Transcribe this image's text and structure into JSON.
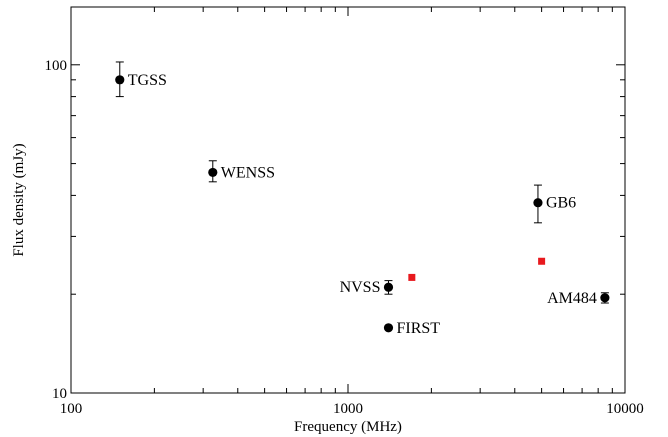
{
  "chart_data": {
    "type": "scatter",
    "title": "",
    "xlabel": "Frequency (MHz)",
    "ylabel": "Flux density (mJy)",
    "x_scale": "log",
    "y_scale": "log",
    "xlim": [
      100,
      10000
    ],
    "ylim": [
      10,
      150
    ],
    "grid": false,
    "x_ticks": [
      {
        "value": 100,
        "label": "100"
      },
      {
        "value": 1000,
        "label": "1000"
      },
      {
        "value": 10000,
        "label": "10000"
      }
    ],
    "y_ticks": [
      {
        "value": 10,
        "label": "10"
      },
      {
        "value": 100,
        "label": "100"
      }
    ],
    "series": [
      {
        "marker": "circle",
        "color": "#000000",
        "points": [
          {
            "label": "TGSS",
            "x": 150,
            "y": 90,
            "err_low": 80,
            "err_high": 102,
            "label_side": "right"
          },
          {
            "label": "WENSS",
            "x": 325,
            "y": 47,
            "err_low": 44,
            "err_high": 51,
            "label_side": "right"
          },
          {
            "label": "GB6",
            "x": 4850,
            "y": 38,
            "err_low": 33,
            "err_high": 43,
            "label_side": "right"
          },
          {
            "label": "NVSS",
            "x": 1400,
            "y": 21,
            "err_low": 20,
            "err_high": 22,
            "label_side": "left"
          },
          {
            "label": "FIRST",
            "x": 1400,
            "y": 15.8,
            "err_low": 15.8,
            "err_high": 15.8,
            "label_side": "right"
          },
          {
            "label": "AM484",
            "x": 8460,
            "y": 19.5,
            "err_low": 18.8,
            "err_high": 20.2,
            "label_side": "left"
          }
        ]
      },
      {
        "marker": "square",
        "color": "#e8191e",
        "points": [
          {
            "x": 1700,
            "y": 22.5
          },
          {
            "x": 5000,
            "y": 25.2
          }
        ]
      }
    ]
  }
}
